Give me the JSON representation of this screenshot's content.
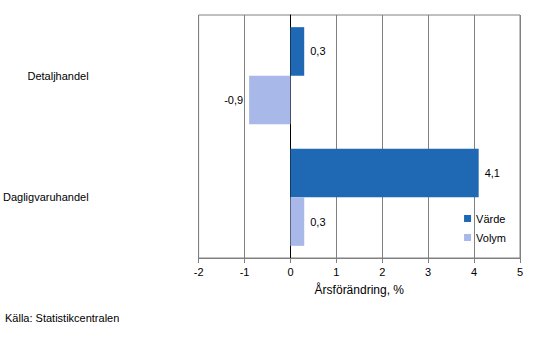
{
  "chart_data": {
    "type": "bar",
    "orientation": "horizontal",
    "categories": [
      "Detaljhandel",
      "Dagligvaruhandel"
    ],
    "series": [
      {
        "name": "Värde",
        "color": "#1f69b4",
        "values": [
          0.3,
          4.1
        ],
        "value_labels": [
          "0,3",
          "4,1"
        ]
      },
      {
        "name": "Volym",
        "color": "#a8b8e8",
        "values": [
          -0.9,
          0.3
        ],
        "value_labels": [
          "-0,9",
          "0,3"
        ]
      }
    ],
    "x_label": "Årsförändring, %",
    "xlim": [
      -2,
      5
    ],
    "xticks": [
      -2,
      -1,
      0,
      1,
      2,
      3,
      4,
      5
    ],
    "grid": true,
    "legend": "lower right",
    "data_labels": true,
    "annotations": [
      "Källa: Statistikcentralen"
    ]
  }
}
